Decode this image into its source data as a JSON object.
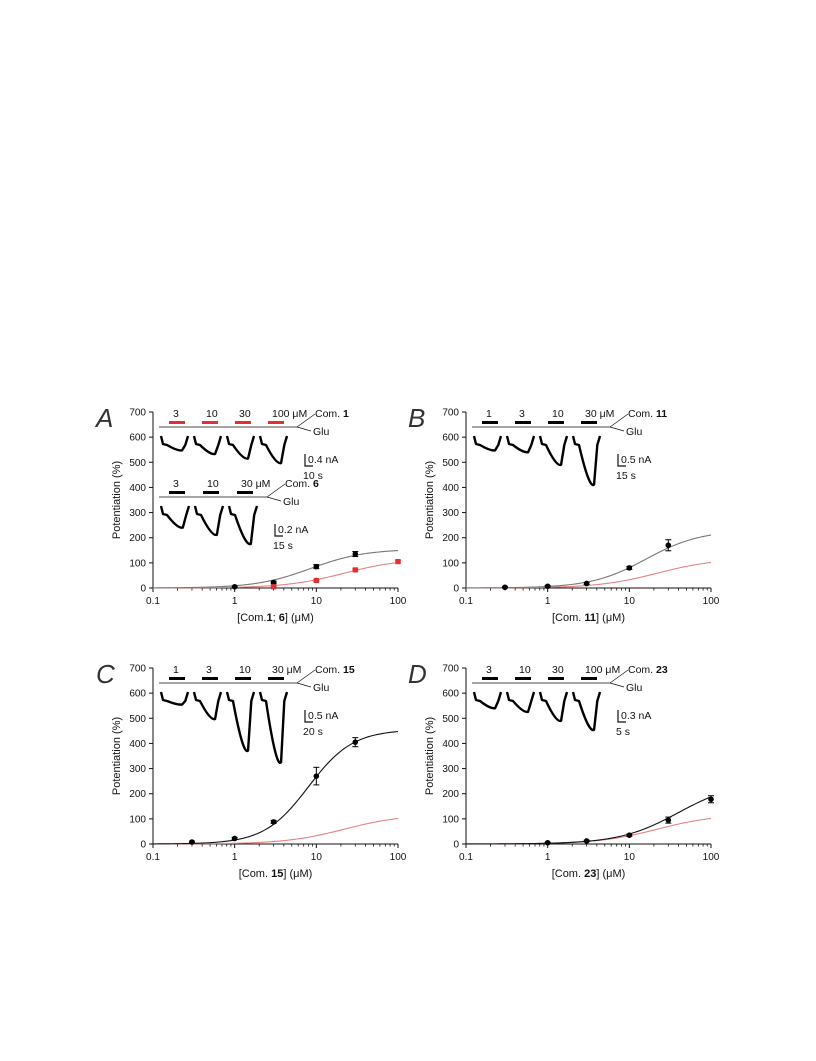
{
  "chart_data": [
    {
      "type": "scatter",
      "panel": "A",
      "xlabel": {
        "pre": "[Com.",
        "bold": "1",
        "mid": "; ",
        "bold2": "6",
        "post": "] (μM)"
      },
      "ylabel": "Potentiation (%)",
      "x_scale": "log",
      "xlim": [
        0.1,
        100
      ],
      "ylim": [
        0,
        700
      ],
      "x_ticks": [
        "0.1",
        "1",
        "10",
        "100"
      ],
      "y_ticks": [
        "0",
        "100",
        "200",
        "300",
        "400",
        "500",
        "600",
        "700"
      ],
      "series": [
        {
          "color": "#000000",
          "fit_color": "#777777",
          "fit": {
            "top": 155,
            "ec50": 8.5,
            "n": 1.3
          },
          "x": [
            1,
            3,
            10,
            30
          ],
          "y": [
            5,
            22,
            85,
            135
          ],
          "err": [
            3,
            5,
            8,
            10
          ]
        },
        {
          "color": "#e23030",
          "fit_color": "#e88080",
          "fit": {
            "top": 118,
            "ec50": 22,
            "n": 1.2
          },
          "x": [
            3,
            10,
            30,
            100
          ],
          "y": [
            5,
            30,
            72,
            105
          ],
          "err": [
            2,
            3,
            4,
            5
          ]
        }
      ],
      "insets": [
        {
          "labels": [
            "3",
            "10",
            "30",
            "100 μM"
          ],
          "compound_prefix": "Com. ",
          "compound": "1",
          "glu": "Glu",
          "bar_color": "#e23030",
          "scale_current": "0.4 nA",
          "scale_time": "10 s",
          "depths": [
            6,
            10,
            15,
            20
          ]
        },
        {
          "labels": [
            "3",
            "10",
            "30 μM"
          ],
          "compound_prefix": "Com. ",
          "compound": "6",
          "glu": "Glu",
          "bar_color": "#000000",
          "scale_current": "0.2 nA",
          "scale_time": "15 s",
          "depths": [
            14,
            22,
            32
          ]
        }
      ]
    },
    {
      "type": "scatter",
      "panel": "B",
      "xlabel": {
        "pre": "[Com. ",
        "bold": "11",
        "post": "] (μM)"
      },
      "ylabel": "Potentiation (%)",
      "x_scale": "log",
      "xlim": [
        0.1,
        100
      ],
      "ylim": [
        0,
        700
      ],
      "x_ticks": [
        "0.1",
        "1",
        "10",
        "100"
      ],
      "y_ticks": [
        "0",
        "100",
        "200",
        "300",
        "400",
        "500",
        "600",
        "700"
      ],
      "series": [
        {
          "color": "#000000",
          "fit_color": "#777777",
          "fit": {
            "top": 230,
            "ec50": 16,
            "n": 1.3
          },
          "x": [
            0.3,
            1,
            3,
            10,
            30
          ],
          "y": [
            3,
            7,
            18,
            80,
            170
          ],
          "err": [
            2,
            3,
            4,
            6,
            22
          ]
        },
        {
          "color": "#e23030",
          "fit_color": "#e88080",
          "fit": {
            "top": 118,
            "ec50": 22,
            "n": 1.2
          },
          "x": [],
          "y": [],
          "err": []
        }
      ],
      "insets": [
        {
          "labels": [
            "1",
            "3",
            "10",
            "30 μM"
          ],
          "compound_prefix": "Com. ",
          "compound": "11",
          "glu": "Glu",
          "bar_color": "#000000",
          "scale_current": "0.5 nA",
          "scale_time": "15 s",
          "depths": [
            6,
            8,
            22,
            44
          ]
        }
      ]
    },
    {
      "type": "scatter",
      "panel": "C",
      "xlabel": {
        "pre": "[Com. ",
        "bold": "15",
        "post": "] (μM)"
      },
      "ylabel": "Potentiation (%)",
      "x_scale": "log",
      "xlim": [
        0.1,
        100
      ],
      "ylim": [
        0,
        700
      ],
      "x_ticks": [
        "0.1",
        "1",
        "10",
        "100"
      ],
      "y_ticks": [
        "0",
        "100",
        "200",
        "300",
        "400",
        "500",
        "600",
        "700"
      ],
      "series": [
        {
          "color": "#000000",
          "fit_color": "#111111",
          "fit": {
            "top": 455,
            "ec50": 8,
            "n": 1.6
          },
          "x": [
            0.3,
            1,
            3,
            10,
            30
          ],
          "y": [
            8,
            22,
            88,
            270,
            405
          ],
          "err": [
            3,
            4,
            6,
            35,
            18
          ]
        },
        {
          "color": "#e23030",
          "fit_color": "#e88080",
          "fit": {
            "top": 118,
            "ec50": 22,
            "n": 1.2
          },
          "x": [],
          "y": [],
          "err": []
        }
      ],
      "insets": [
        {
          "labels": [
            "1",
            "3",
            "10",
            "30 μM"
          ],
          "compound_prefix": "Com. ",
          "compound": "15",
          "glu": "Glu",
          "bar_color": "#000000",
          "scale_current": "0.5 nA",
          "scale_time": "20 s",
          "depths": [
            4,
            20,
            55,
            68
          ]
        }
      ]
    },
    {
      "type": "scatter",
      "panel": "D",
      "xlabel": {
        "pre": "[Com. ",
        "bold": "23",
        "post": "] (μM)"
      },
      "ylabel": "Potentiation (%)",
      "x_scale": "log",
      "xlim": [
        0.1,
        100
      ],
      "ylim": [
        0,
        700
      ],
      "x_ticks": [
        "0.1",
        "1",
        "10",
        "100"
      ],
      "y_ticks": [
        "0",
        "100",
        "200",
        "300",
        "400",
        "500",
        "600",
        "700"
      ],
      "series": [
        {
          "color": "#000000",
          "fit_color": "#111111",
          "fit": {
            "top": 250,
            "ec50": 40,
            "n": 1.2
          },
          "x": [
            1,
            3,
            10,
            30,
            100
          ],
          "y": [
            5,
            12,
            35,
            95,
            178
          ],
          "err": [
            2,
            3,
            4,
            12,
            14
          ]
        },
        {
          "color": "#e23030",
          "fit_color": "#e88080",
          "fit": {
            "top": 118,
            "ec50": 22,
            "n": 1.2
          },
          "x": [],
          "y": [],
          "err": []
        }
      ],
      "insets": [
        {
          "labels": [
            "3",
            "10",
            "30",
            "100 μM"
          ],
          "compound_prefix": "Com. ",
          "compound": "23",
          "glu": "Glu",
          "bar_color": "#000000",
          "scale_current": "0.3 nA",
          "scale_time": "5 s",
          "depths": [
            8,
            12,
            22,
            32
          ]
        }
      ]
    }
  ]
}
